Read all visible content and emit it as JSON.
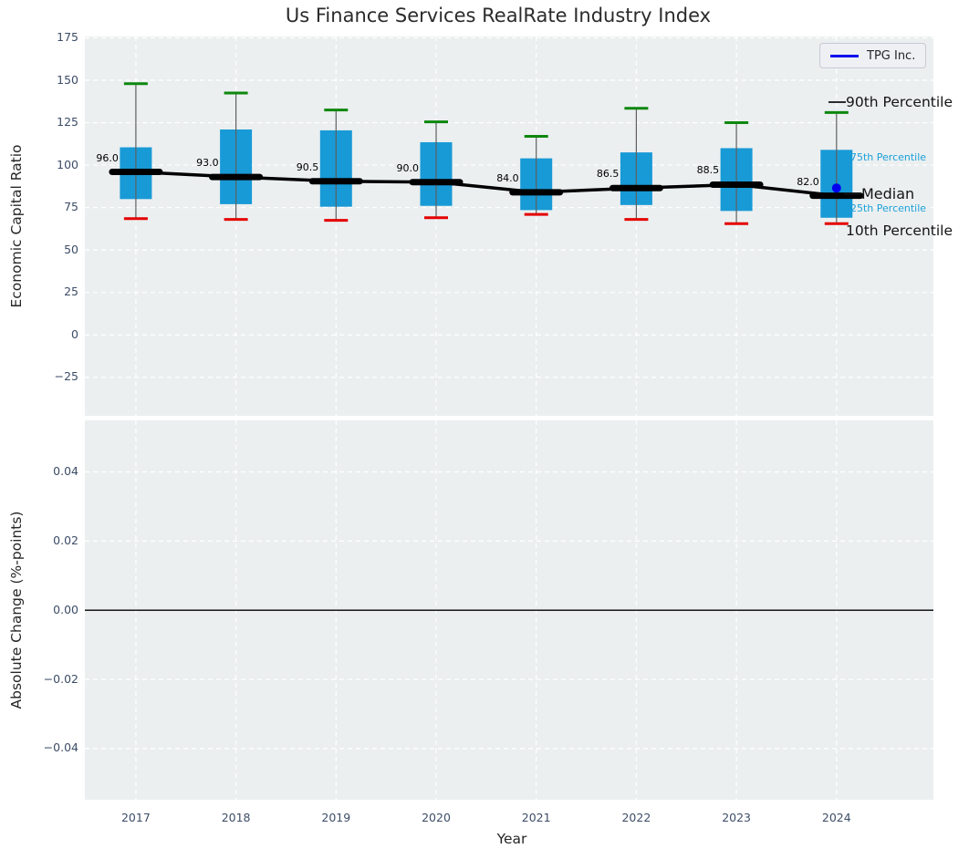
{
  "title": "Us Finance Services RealRate Industry Index",
  "legend": {
    "label": "TPG Inc.",
    "line_color": "#0000ee"
  },
  "annotations": {
    "p90": {
      "label": "90th Percentile"
    },
    "p75": {
      "label": "75th Percentile"
    },
    "median": {
      "label": "Median"
    },
    "p25": {
      "label": "25th Percentile"
    },
    "p10": {
      "label": "10th Percentile"
    }
  },
  "colors": {
    "panel_bg": "#ebeff0",
    "grid": "#ffffff",
    "box_fill": "#189ad6",
    "whisker": "#5f5f5f",
    "cap_high": "#0d870d",
    "cap_low": "#e50000",
    "median_line": "#000000",
    "tpg_blue": "#0000ee",
    "tick_text": "#3d4d66",
    "text": "#262626",
    "percentile_label": "#1b9fd8"
  },
  "chart_data": [
    {
      "type": "box",
      "title": "Us Finance Services RealRate Industry Index",
      "xlabel": "Year",
      "ylabel": "Economic Capital Ratio",
      "categories": [
        "2017",
        "2018",
        "2019",
        "2020",
        "2021",
        "2022",
        "2023",
        "2024"
      ],
      "ytick_values": [
        175,
        150,
        125,
        100,
        75,
        50,
        25,
        0,
        -25
      ],
      "ytick_labels": [
        "175",
        "150",
        "125",
        "100",
        "75",
        "50",
        "25",
        "0",
        "−25"
      ],
      "ylim": [
        -47.7,
        175.8
      ],
      "grid": true,
      "legend_position": "upper right",
      "boxes": [
        {
          "year": "2017",
          "whisker_low": 68.5,
          "q1": 80.0,
          "median": 96.0,
          "q3": 110.5,
          "whisker_high": 148.0
        },
        {
          "year": "2018",
          "whisker_low": 68.0,
          "q1": 77.0,
          "median": 93.0,
          "q3": 121.0,
          "whisker_high": 142.5
        },
        {
          "year": "2019",
          "whisker_low": 67.5,
          "q1": 75.5,
          "median": 90.5,
          "q3": 120.5,
          "whisker_high": 132.5
        },
        {
          "year": "2020",
          "whisker_low": 69.0,
          "q1": 76.0,
          "median": 90.0,
          "q3": 113.5,
          "whisker_high": 125.5
        },
        {
          "year": "2021",
          "whisker_low": 71.0,
          "q1": 73.5,
          "median": 84.0,
          "q3": 104.0,
          "whisker_high": 117.0
        },
        {
          "year": "2022",
          "whisker_low": 68.0,
          "q1": 76.5,
          "median": 86.5,
          "q3": 107.5,
          "whisker_high": 133.5
        },
        {
          "year": "2023",
          "whisker_low": 65.5,
          "q1": 73.0,
          "median": 88.5,
          "q3": 110.0,
          "whisker_high": 125.0
        },
        {
          "year": "2024",
          "whisker_low": 65.5,
          "q1": 69.0,
          "median": 82.0,
          "q3": 109.0,
          "whisker_high": 131.0
        }
      ],
      "median_labels": [
        "96.0",
        "93.0",
        "90.5",
        "90.0",
        "84.0",
        "86.5",
        "88.5",
        "82.0"
      ],
      "series": [
        {
          "name": "TPG Inc.",
          "style": "point",
          "x": [
            "2024"
          ],
          "y": [
            86.5
          ],
          "color": "#0000ee"
        }
      ]
    },
    {
      "type": "line",
      "xlabel": "Year",
      "ylabel": "Absolute Change (%-points)",
      "categories": [
        "2017",
        "2018",
        "2019",
        "2020",
        "2021",
        "2022",
        "2023",
        "2024"
      ],
      "ytick_values": [
        0.04,
        0.02,
        0.0,
        -0.02,
        -0.04
      ],
      "ytick_labels": [
        "0.04",
        "0.02",
        "0.00",
        "−0.02",
        "−0.04"
      ],
      "ylim": [
        -0.0548,
        0.0549
      ],
      "grid": true,
      "zero_line": true,
      "series": []
    }
  ]
}
